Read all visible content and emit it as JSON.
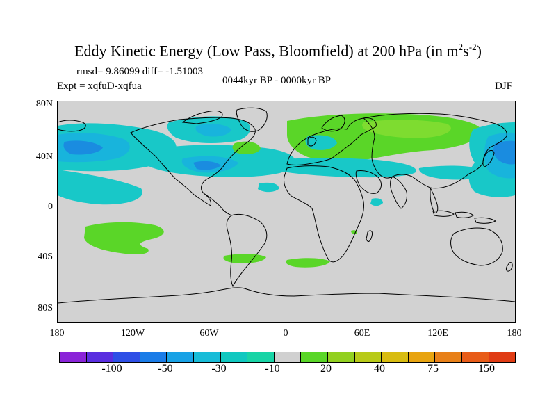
{
  "title": {
    "main": "Eddy Kinetic Energy (Low Pass, Bloomfield) at 200 hPa (in m",
    "sup1": "2",
    "mid": "s",
    "sup2": "-2",
    "end": ")"
  },
  "stats": "rmsd= 9.86099 diff= -1.51003",
  "period": "0044kyr BP - 0000kyr BP",
  "expt": "Expt = xqfuD-xqfua",
  "season": "DJF",
  "lat_labels": [
    "80N",
    "40N",
    "0",
    "40S",
    "80S"
  ],
  "lon_labels": [
    "180",
    "120W",
    "60W",
    "0",
    "60E",
    "120E",
    "180"
  ],
  "colorbar": {
    "colors": [
      "#8a24d8",
      "#5a2ee0",
      "#2e4fe6",
      "#1a7ce8",
      "#18a2e6",
      "#18bcd8",
      "#10c8c0",
      "#18d4a6",
      "#d0d0d0",
      "#5ad628",
      "#92d020",
      "#b8ca18",
      "#d8bc10",
      "#e8a410",
      "#e88018",
      "#e85c18",
      "#e03c14"
    ],
    "labels": [
      "-100",
      "-50",
      "-30",
      "-10",
      "20",
      "40",
      "75",
      "150"
    ]
  },
  "colors": {
    "land_outline": "#000000",
    "ocean_neutral": "#d2d2d2",
    "cyan_light": "#18c8c8",
    "cyan": "#18b4dc",
    "blue": "#1a8ce0",
    "green": "#5ad628",
    "green_light": "#7edc30"
  }
}
